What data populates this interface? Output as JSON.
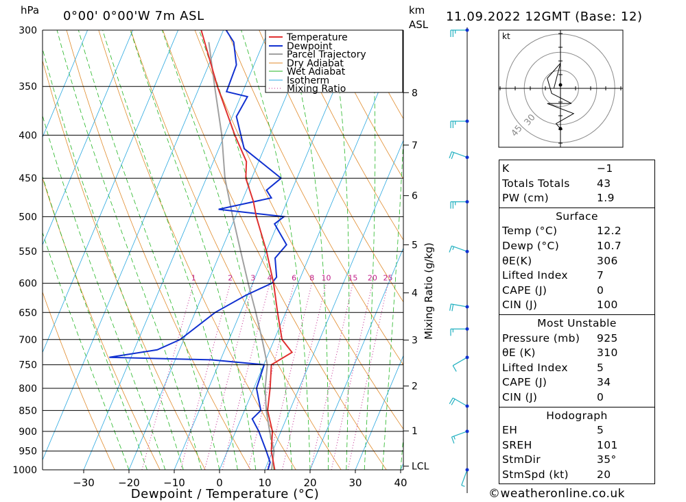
{
  "header": {
    "pressure_unit": "hPa",
    "location": "0°00' 0°00'W 7m ASL",
    "height_unit_line1": "km",
    "height_unit_line2": "ASL",
    "datetime": "11.09.2022 12GMT (Base: 12)"
  },
  "colors": {
    "temperature": "#e03030",
    "dewpoint": "#1030d0",
    "parcel": "#a0a0a0",
    "dry_adiabat": "#e08a2a",
    "wet_adiabat": "#22b522",
    "isotherm": "#2aa8e0",
    "mixing_ratio": "#c0208a",
    "wind": "#20b0c0"
  },
  "chart_data": {
    "type": "line",
    "title": "",
    "xlabel": "Dewpoint / Temperature (°C)",
    "ylabel": "hPa",
    "x_ticks": [
      "−30",
      "−20",
      "−10",
      "0",
      "10",
      "20",
      "30",
      "40"
    ],
    "xlim": [
      -40,
      40
    ],
    "pressure_levels": [
      300,
      350,
      400,
      450,
      500,
      550,
      600,
      650,
      700,
      750,
      800,
      850,
      900,
      950,
      1000
    ],
    "ylim": [
      1000,
      300
    ],
    "height_axis_label": "km ASL",
    "height_ticks": [
      {
        "km": "8",
        "p": 356
      },
      {
        "km": "7",
        "p": 411
      },
      {
        "km": "6",
        "p": 472
      },
      {
        "km": "5",
        "p": 540
      },
      {
        "km": "4",
        "p": 616
      },
      {
        "km": "3",
        "p": 701
      },
      {
        "km": "2",
        "p": 795
      },
      {
        "km": "1",
        "p": 899
      },
      {
        "km": "LCL",
        "p": 990
      }
    ],
    "mixing_ratio_label": "Mixing Ratio (g/kg)",
    "mixing_ratio_values": [
      "1",
      "2",
      "3",
      "4",
      "6",
      "8",
      "10",
      "15",
      "20",
      "25"
    ],
    "legend_position": "top-right",
    "legend": [
      "Temperature",
      "Dewpoint",
      "Parcel Trajectory",
      "Dry Adiabat",
      "Wet Adiabat",
      "Isotherm",
      "Mixing Ratio"
    ],
    "grid": true,
    "series": [
      {
        "name": "Temperature",
        "points": [
          [
            1000,
            12.2
          ],
          [
            950,
            9.7
          ],
          [
            900,
            8.1
          ],
          [
            850,
            5.1
          ],
          [
            800,
            3.6
          ],
          [
            750,
            1.7
          ],
          [
            725,
            5.1
          ],
          [
            700,
            1.7
          ],
          [
            650,
            -1.8
          ],
          [
            600,
            -5.4
          ],
          [
            550,
            -9.9
          ],
          [
            500,
            -15.4
          ],
          [
            480,
            -17.4
          ],
          [
            450,
            -21.3
          ],
          [
            430,
            -22.7
          ],
          [
            400,
            -27.7
          ],
          [
            350,
            -36.1
          ],
          [
            300,
            -44.9
          ]
        ]
      },
      {
        "name": "Dewpoint",
        "points": [
          [
            1000,
            10.7
          ],
          [
            980,
            10.5
          ],
          [
            950,
            8.6
          ],
          [
            900,
            5.1
          ],
          [
            870,
            2.5
          ],
          [
            850,
            3.6
          ],
          [
            800,
            0.6
          ],
          [
            750,
            0.1
          ],
          [
            740,
            -12
          ],
          [
            735,
            -34.8
          ],
          [
            720,
            -24.9
          ],
          [
            700,
            -20.8
          ],
          [
            650,
            -15.6
          ],
          [
            620,
            -10.4
          ],
          [
            600,
            -5.8
          ],
          [
            590,
            -5.3
          ],
          [
            560,
            -7.4
          ],
          [
            540,
            -6.1
          ],
          [
            510,
            -10.7
          ],
          [
            500,
            -9.3
          ],
          [
            490,
            -24.4
          ],
          [
            475,
            -13.8
          ],
          [
            465,
            -15.6
          ],
          [
            450,
            -13.5
          ],
          [
            415,
            -24.4
          ],
          [
            380,
            -29.1
          ],
          [
            360,
            -28.5
          ],
          [
            355,
            -33.6
          ],
          [
            330,
            -33.9
          ],
          [
            310,
            -36.6
          ],
          [
            300,
            -39.4
          ]
        ]
      },
      {
        "name": "Parcel Trajectory",
        "points": [
          [
            1000,
            11.5
          ],
          [
            950,
            10.3
          ],
          [
            900,
            7.5
          ],
          [
            850,
            4.8
          ],
          [
            800,
            2.5
          ],
          [
            750,
            0.8
          ],
          [
            700,
            -2.7
          ],
          [
            650,
            -6.6
          ],
          [
            600,
            -11
          ],
          [
            550,
            -15.6
          ],
          [
            500,
            -20.6
          ],
          [
            450,
            -25.9
          ],
          [
            400,
            -30.6
          ],
          [
            350,
            -36.7
          ],
          [
            310,
            -42.1
          ]
        ]
      }
    ],
    "wind_profile": [
      {
        "p": 300,
        "dir": 270,
        "kt": 25
      },
      {
        "p": 385,
        "dir": 270,
        "kt": 25
      },
      {
        "p": 425,
        "dir": 290,
        "kt": 20
      },
      {
        "p": 480,
        "dir": 270,
        "kt": 25
      },
      {
        "p": 550,
        "dir": 290,
        "kt": 15
      },
      {
        "p": 640,
        "dir": 280,
        "kt": 20
      },
      {
        "p": 680,
        "dir": 270,
        "kt": 15
      },
      {
        "p": 735,
        "dir": 240,
        "kt": 10
      },
      {
        "p": 840,
        "dir": 300,
        "kt": 20
      },
      {
        "p": 900,
        "dir": 250,
        "kt": 15
      },
      {
        "p": 1000,
        "dir": 200,
        "kt": 5
      }
    ],
    "hodograph": {
      "unit": "kt",
      "ring_labels": [
        "30",
        "45"
      ],
      "u": [
        0,
        -2,
        6,
        -6,
        5,
        -4,
        -6,
        0,
        -3,
        0
      ],
      "v": [
        -8,
        -7,
        -5,
        -3,
        -3,
        -1,
        2,
        5,
        0,
        0
      ]
    }
  },
  "stats": {
    "general": [
      {
        "label": "K",
        "value": "−1"
      },
      {
        "label": "Totals Totals",
        "value": "43"
      },
      {
        "label": "PW (cm)",
        "value": "1.9"
      }
    ],
    "surface": {
      "title": "Surface",
      "rows": [
        {
          "label": "Temp (°C)",
          "value": "12.2"
        },
        {
          "label": "Dewp (°C)",
          "value": "10.7"
        },
        {
          "label": "θE(K)",
          "value": "306"
        },
        {
          "label": "Lifted Index",
          "value": "7"
        },
        {
          "label": "CAPE (J)",
          "value": "0"
        },
        {
          "label": "CIN (J)",
          "value": "100"
        }
      ]
    },
    "most_unstable": {
      "title": "Most Unstable",
      "rows": [
        {
          "label": "Pressure (mb)",
          "value": "925"
        },
        {
          "label": "θE (K)",
          "value": "310"
        },
        {
          "label": "Lifted Index",
          "value": "5"
        },
        {
          "label": "CAPE (J)",
          "value": "34"
        },
        {
          "label": "CIN (J)",
          "value": "0"
        }
      ]
    },
    "hodograph": {
      "title": "Hodograph",
      "rows": [
        {
          "label": "EH",
          "value": "5"
        },
        {
          "label": "SREH",
          "value": "101"
        },
        {
          "label": "StmDir",
          "value": "35°"
        },
        {
          "label": "StmSpd (kt)",
          "value": "20"
        }
      ]
    }
  },
  "credit": "©weatheronline.co.uk"
}
